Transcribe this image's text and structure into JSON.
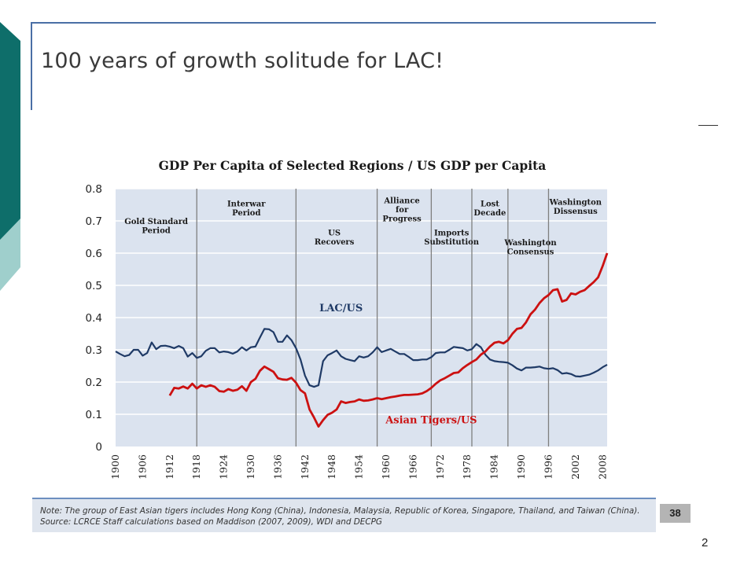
{
  "slide": {
    "title": "100 years of growth solitude for LAC!",
    "note": "Note: The group of East Asian tigers includes Hong Kong (China), Indonesia, Malaysia, Republic of Korea, Singapore, Thailand, and Taiwan (China). Source: LCRCE Staff calculations based on Maddison (2007, 2009), WDI and DECPG",
    "slide_number": "38",
    "page_number": "2"
  },
  "colors": {
    "teal_dark": "#0e6e6a",
    "teal_light": "#9fcfcc",
    "accent_blue": "#4a6fa5",
    "plot_bg": "#dbe3ef",
    "lac_line": "#1f3a66",
    "tigers_line": "#cc1111"
  },
  "chart_data": {
    "type": "line",
    "title": "GDP Per Capita of Selected Regions / US GDP per Capita",
    "xlabel": "",
    "ylabel": "",
    "xlim": [
      1900,
      2009
    ],
    "ylim": [
      0,
      0.8
    ],
    "grid": true,
    "x_ticks": [
      "1900",
      "1906",
      "1912",
      "1918",
      "1924",
      "1930",
      "1936",
      "1942",
      "1948",
      "1954",
      "1960",
      "1966",
      "1972",
      "1978",
      "1984",
      "1990",
      "1996",
      "2002",
      "2008"
    ],
    "y_ticks": [
      {
        "value": 0,
        "label": "0"
      },
      {
        "value": 0.1,
        "label": "0.1"
      },
      {
        "value": 0.2,
        "label": "0.2"
      },
      {
        "value": 0.3,
        "label": "0.3"
      },
      {
        "value": 0.4,
        "label": "0.4"
      },
      {
        "value": 0.5,
        "label": "0.5"
      },
      {
        "value": 0.6,
        "label": "0.6"
      },
      {
        "value": 0.7,
        "label": "0.7"
      },
      {
        "value": 0.8,
        "label": "0.8"
      }
    ],
    "period_dividers": [
      1918,
      1940,
      1958,
      1970,
      1979,
      1987,
      1996
    ],
    "period_labels": [
      {
        "lines": [
          "Gold Standard",
          "Period"
        ],
        "x": 1909,
        "y": 0.69
      },
      {
        "lines": [
          "Interwar",
          "Period"
        ],
        "x": 1929,
        "y": 0.745
      },
      {
        "lines": [
          "US",
          "Recovers"
        ],
        "x": 1948.5,
        "y": 0.655
      },
      {
        "lines": [
          "Alliance",
          "for",
          "Progress"
        ],
        "x": 1963.5,
        "y": 0.755
      },
      {
        "lines": [
          "Imports",
          "Substitution"
        ],
        "x": 1974.5,
        "y": 0.655
      },
      {
        "lines": [
          "Lost",
          "Decade"
        ],
        "x": 1983,
        "y": 0.745
      },
      {
        "lines": [
          "Washington",
          "Consensus"
        ],
        "x": 1992,
        "y": 0.625
      },
      {
        "lines": [
          "Washington",
          "Dissensus"
        ],
        "x": 2002,
        "y": 0.75
      }
    ],
    "series_labels": [
      {
        "text": "LAC/US",
        "x": 1950,
        "y": 0.42
      },
      {
        "text": "Asian Tigers/US",
        "x": 1970,
        "y": 0.072
      }
    ],
    "series": [
      {
        "name": "LAC/US",
        "color": "#1f3a66",
        "points": [
          [
            1900,
            0.295
          ],
          [
            1901,
            0.287
          ],
          [
            1902,
            0.28
          ],
          [
            1903,
            0.284
          ],
          [
            1904,
            0.3
          ],
          [
            1905,
            0.3
          ],
          [
            1906,
            0.282
          ],
          [
            1907,
            0.29
          ],
          [
            1908,
            0.323
          ],
          [
            1909,
            0.302
          ],
          [
            1910,
            0.312
          ],
          [
            1911,
            0.313
          ],
          [
            1912,
            0.31
          ],
          [
            1913,
            0.305
          ],
          [
            1914,
            0.312
          ],
          [
            1915,
            0.305
          ],
          [
            1916,
            0.279
          ],
          [
            1917,
            0.29
          ],
          [
            1918,
            0.275
          ],
          [
            1919,
            0.28
          ],
          [
            1920,
            0.297
          ],
          [
            1921,
            0.305
          ],
          [
            1922,
            0.305
          ],
          [
            1923,
            0.292
          ],
          [
            1924,
            0.295
          ],
          [
            1925,
            0.293
          ],
          [
            1926,
            0.288
          ],
          [
            1927,
            0.295
          ],
          [
            1928,
            0.308
          ],
          [
            1929,
            0.298
          ],
          [
            1930,
            0.308
          ],
          [
            1931,
            0.31
          ],
          [
            1932,
            0.338
          ],
          [
            1933,
            0.365
          ],
          [
            1934,
            0.364
          ],
          [
            1935,
            0.355
          ],
          [
            1936,
            0.325
          ],
          [
            1937,
            0.325
          ],
          [
            1938,
            0.345
          ],
          [
            1939,
            0.33
          ],
          [
            1940,
            0.305
          ],
          [
            1941,
            0.27
          ],
          [
            1942,
            0.22
          ],
          [
            1943,
            0.19
          ],
          [
            1944,
            0.185
          ],
          [
            1945,
            0.19
          ],
          [
            1946,
            0.265
          ],
          [
            1947,
            0.283
          ],
          [
            1948,
            0.29
          ],
          [
            1949,
            0.298
          ],
          [
            1950,
            0.28
          ],
          [
            1951,
            0.272
          ],
          [
            1952,
            0.268
          ],
          [
            1953,
            0.265
          ],
          [
            1954,
            0.28
          ],
          [
            1955,
            0.276
          ],
          [
            1956,
            0.28
          ],
          [
            1957,
            0.292
          ],
          [
            1958,
            0.308
          ],
          [
            1959,
            0.293
          ],
          [
            1960,
            0.298
          ],
          [
            1961,
            0.303
          ],
          [
            1962,
            0.295
          ],
          [
            1963,
            0.287
          ],
          [
            1964,
            0.287
          ],
          [
            1965,
            0.278
          ],
          [
            1966,
            0.268
          ],
          [
            1967,
            0.268
          ],
          [
            1968,
            0.27
          ],
          [
            1969,
            0.27
          ],
          [
            1970,
            0.277
          ],
          [
            1971,
            0.29
          ],
          [
            1972,
            0.292
          ],
          [
            1973,
            0.292
          ],
          [
            1974,
            0.3
          ],
          [
            1975,
            0.309
          ],
          [
            1976,
            0.307
          ],
          [
            1977,
            0.305
          ],
          [
            1978,
            0.298
          ],
          [
            1979,
            0.302
          ],
          [
            1980,
            0.318
          ],
          [
            1981,
            0.308
          ],
          [
            1982,
            0.285
          ],
          [
            1983,
            0.27
          ],
          [
            1984,
            0.265
          ],
          [
            1985,
            0.263
          ],
          [
            1986,
            0.262
          ],
          [
            1987,
            0.26
          ],
          [
            1988,
            0.252
          ],
          [
            1989,
            0.242
          ],
          [
            1990,
            0.236
          ],
          [
            1991,
            0.245
          ],
          [
            1992,
            0.245
          ],
          [
            1993,
            0.246
          ],
          [
            1994,
            0.248
          ],
          [
            1995,
            0.243
          ],
          [
            1996,
            0.241
          ],
          [
            1997,
            0.243
          ],
          [
            1998,
            0.237
          ],
          [
            1999,
            0.226
          ],
          [
            2000,
            0.228
          ],
          [
            2001,
            0.225
          ],
          [
            2002,
            0.218
          ],
          [
            2003,
            0.217
          ],
          [
            2004,
            0.22
          ],
          [
            2005,
            0.223
          ],
          [
            2006,
            0.229
          ],
          [
            2007,
            0.236
          ],
          [
            2008,
            0.246
          ],
          [
            2009,
            0.254
          ]
        ]
      },
      {
        "name": "Asian Tigers/US",
        "color": "#cc1111",
        "points": [
          [
            1912,
            0.158
          ],
          [
            1913,
            0.182
          ],
          [
            1914,
            0.18
          ],
          [
            1915,
            0.186
          ],
          [
            1916,
            0.18
          ],
          [
            1917,
            0.195
          ],
          [
            1918,
            0.18
          ],
          [
            1919,
            0.19
          ],
          [
            1920,
            0.185
          ],
          [
            1921,
            0.19
          ],
          [
            1922,
            0.185
          ],
          [
            1923,
            0.172
          ],
          [
            1924,
            0.17
          ],
          [
            1925,
            0.178
          ],
          [
            1926,
            0.173
          ],
          [
            1927,
            0.176
          ],
          [
            1928,
            0.187
          ],
          [
            1929,
            0.173
          ],
          [
            1930,
            0.2
          ],
          [
            1931,
            0.21
          ],
          [
            1932,
            0.235
          ],
          [
            1933,
            0.248
          ],
          [
            1934,
            0.24
          ],
          [
            1935,
            0.232
          ],
          [
            1936,
            0.212
          ],
          [
            1937,
            0.208
          ],
          [
            1938,
            0.207
          ],
          [
            1939,
            0.213
          ],
          [
            1940,
            0.198
          ],
          [
            1941,
            0.175
          ],
          [
            1942,
            0.165
          ],
          [
            1943,
            0.115
          ],
          [
            1944,
            0.09
          ],
          [
            1945,
            0.062
          ],
          [
            1946,
            0.082
          ],
          [
            1947,
            0.098
          ],
          [
            1948,
            0.105
          ],
          [
            1949,
            0.115
          ],
          [
            1950,
            0.14
          ],
          [
            1951,
            0.135
          ],
          [
            1952,
            0.138
          ],
          [
            1953,
            0.14
          ],
          [
            1954,
            0.146
          ],
          [
            1955,
            0.142
          ],
          [
            1956,
            0.143
          ],
          [
            1957,
            0.146
          ],
          [
            1958,
            0.15
          ],
          [
            1959,
            0.147
          ],
          [
            1960,
            0.15
          ],
          [
            1961,
            0.153
          ],
          [
            1962,
            0.155
          ],
          [
            1963,
            0.158
          ],
          [
            1964,
            0.16
          ],
          [
            1965,
            0.16
          ],
          [
            1966,
            0.161
          ],
          [
            1967,
            0.162
          ],
          [
            1968,
            0.165
          ],
          [
            1969,
            0.172
          ],
          [
            1970,
            0.182
          ],
          [
            1971,
            0.195
          ],
          [
            1972,
            0.205
          ],
          [
            1973,
            0.212
          ],
          [
            1974,
            0.22
          ],
          [
            1975,
            0.228
          ],
          [
            1976,
            0.23
          ],
          [
            1977,
            0.243
          ],
          [
            1978,
            0.253
          ],
          [
            1979,
            0.262
          ],
          [
            1980,
            0.27
          ],
          [
            1981,
            0.285
          ],
          [
            1982,
            0.295
          ],
          [
            1983,
            0.31
          ],
          [
            1984,
            0.322
          ],
          [
            1985,
            0.325
          ],
          [
            1986,
            0.32
          ],
          [
            1987,
            0.33
          ],
          [
            1988,
            0.35
          ],
          [
            1989,
            0.365
          ],
          [
            1990,
            0.368
          ],
          [
            1991,
            0.385
          ],
          [
            1992,
            0.41
          ],
          [
            1993,
            0.425
          ],
          [
            1994,
            0.445
          ],
          [
            1995,
            0.46
          ],
          [
            1996,
            0.47
          ],
          [
            1997,
            0.485
          ],
          [
            1998,
            0.488
          ],
          [
            1999,
            0.45
          ],
          [
            2000,
            0.455
          ],
          [
            2001,
            0.475
          ],
          [
            2002,
            0.472
          ],
          [
            2003,
            0.48
          ],
          [
            2004,
            0.485
          ],
          [
            2005,
            0.498
          ],
          [
            2006,
            0.51
          ],
          [
            2007,
            0.525
          ],
          [
            2008,
            0.56
          ],
          [
            2009,
            0.6
          ]
        ]
      }
    ]
  }
}
